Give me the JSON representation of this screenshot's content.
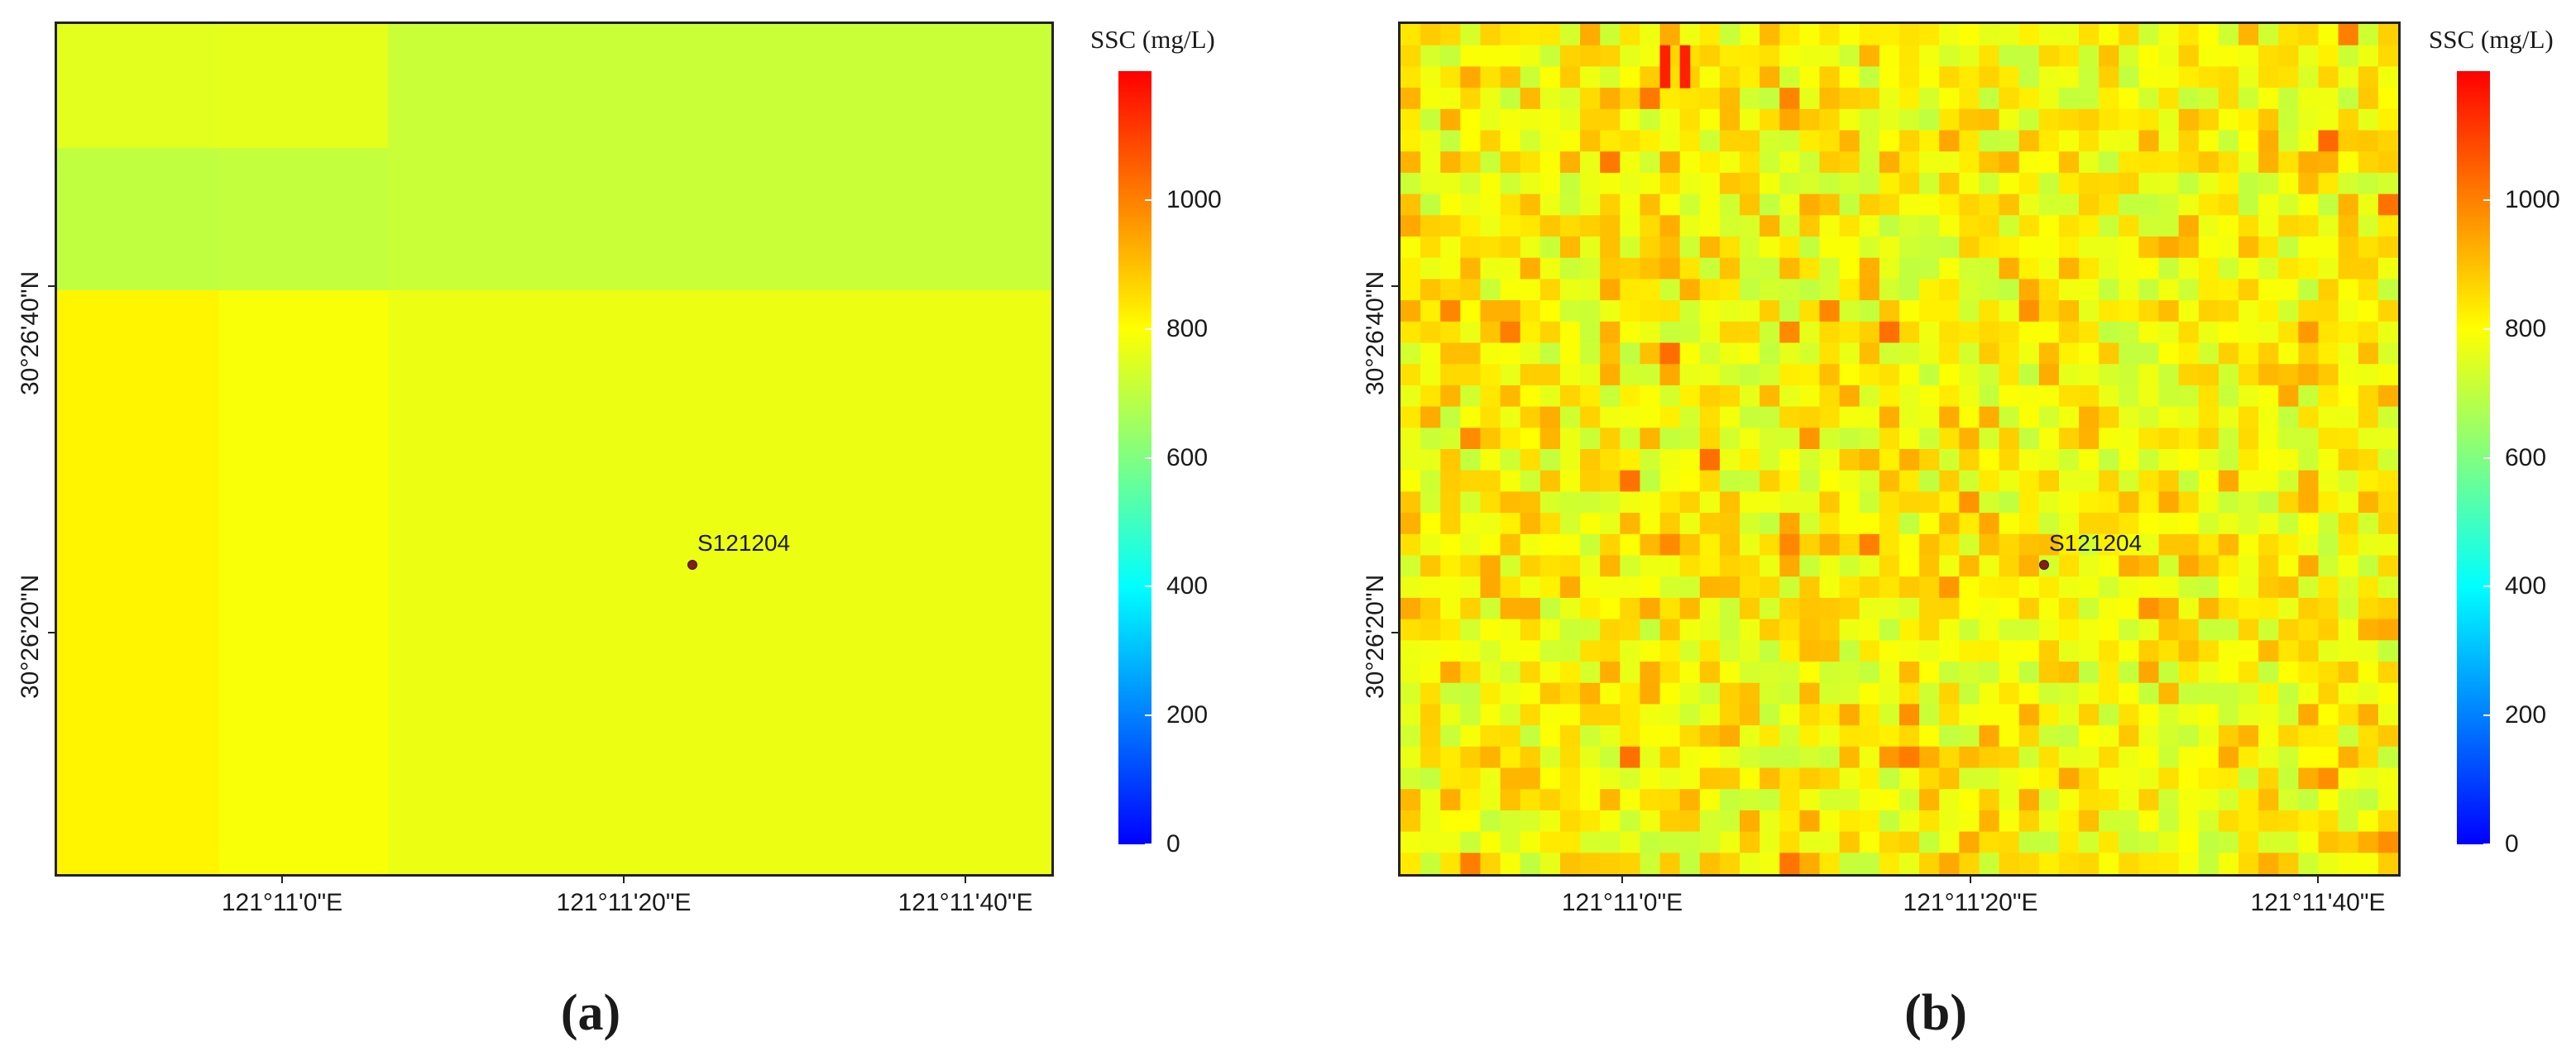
{
  "colors": {
    "frame": "#222222",
    "station": "#8b1a1a",
    "colormap": [
      "#0000ff",
      "#0080ff",
      "#00ffff",
      "#80ff80",
      "#ffff00",
      "#ff8000",
      "#ff0000"
    ]
  },
  "chart_data": [
    {
      "type": "heatmap",
      "panel_label": "(a)",
      "colorbar": {
        "title": "SSC (mg/L)",
        "range": [
          0,
          1200
        ],
        "ticks": [
          "0",
          "200",
          "400",
          "600",
          "800",
          "1000"
        ]
      },
      "x_ticks": [
        "121°11'0\"E",
        "121°11'20\"E",
        "121°11'40\"E"
      ],
      "y_ticks": [
        "30°26'40\"N",
        "30°26'20\"N"
      ],
      "station": {
        "name": "S121204"
      },
      "grid": {
        "cols": 3,
        "rows": 3,
        "values": [
          [
            755,
            760,
            715
          ],
          [
            700,
            705,
            715
          ],
          [
            815,
            790,
            770
          ]
        ]
      }
    },
    {
      "type": "heatmap",
      "panel_label": "(b)",
      "colorbar": {
        "title": "SSC (mg/L)",
        "range": [
          0,
          1200
        ],
        "ticks": [
          "0",
          "200",
          "400",
          "600",
          "800",
          "1000"
        ]
      },
      "x_ticks": [
        "121°11'0\"E",
        "121°11'20\"E",
        "121°11'40\"E"
      ],
      "y_ticks": [
        "30°26'40\"N",
        "30°26'20\"N"
      ],
      "station": {
        "name": "S121204"
      },
      "grid": {
        "cols": 50,
        "rows": 40,
        "mean": 820,
        "min": 690,
        "max": 1150
      }
    }
  ]
}
